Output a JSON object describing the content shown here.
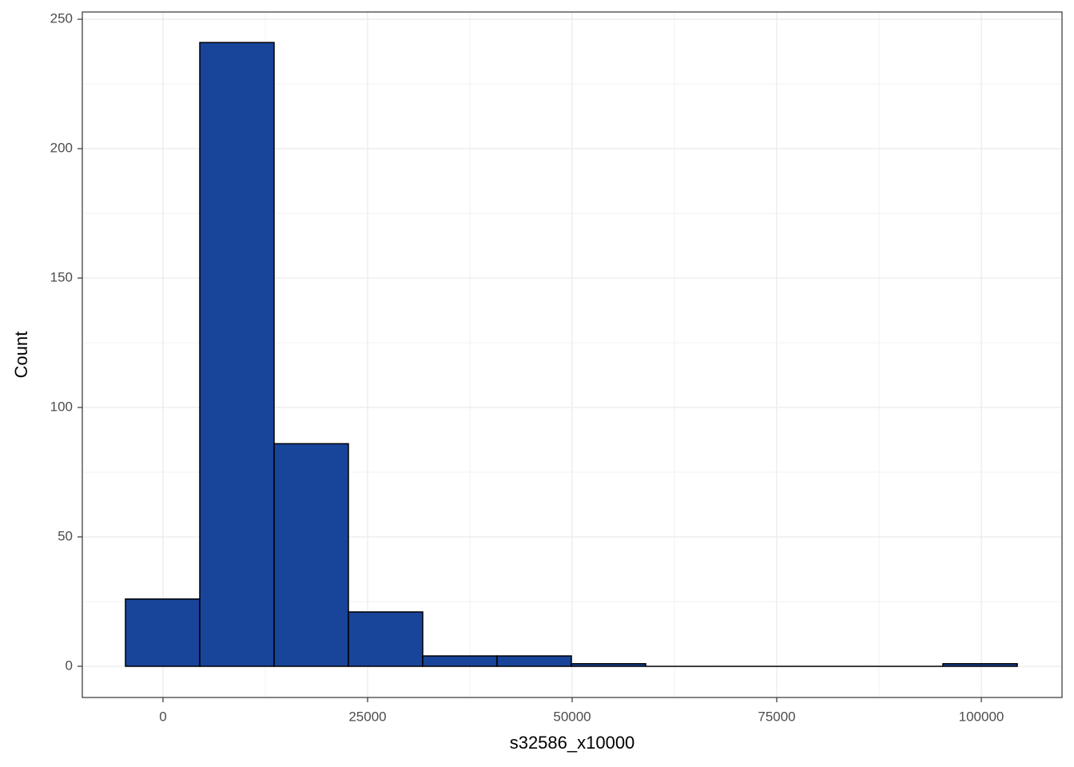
{
  "chart_data": {
    "type": "histogram",
    "x_label": "s32586_x10000",
    "y_label": "Count",
    "bins": [
      -4590,
      4492,
      13574,
      22656,
      31738,
      40820,
      49902,
      58984,
      68066,
      77148,
      86230,
      95312,
      104394
    ],
    "values": [
      26,
      241,
      86,
      21,
      4,
      4,
      1,
      0,
      0,
      0,
      0,
      1
    ],
    "color": "#18449a",
    "edge_color": "#000000",
    "xlim": [
      -9863,
      109863
    ],
    "xticks": [
      0,
      25000,
      50000,
      75000,
      100000
    ],
    "ylim": [
      -12.05,
      252.8
    ],
    "yticks": [
      0,
      50,
      100,
      150,
      200,
      250
    ],
    "grid": true
  }
}
